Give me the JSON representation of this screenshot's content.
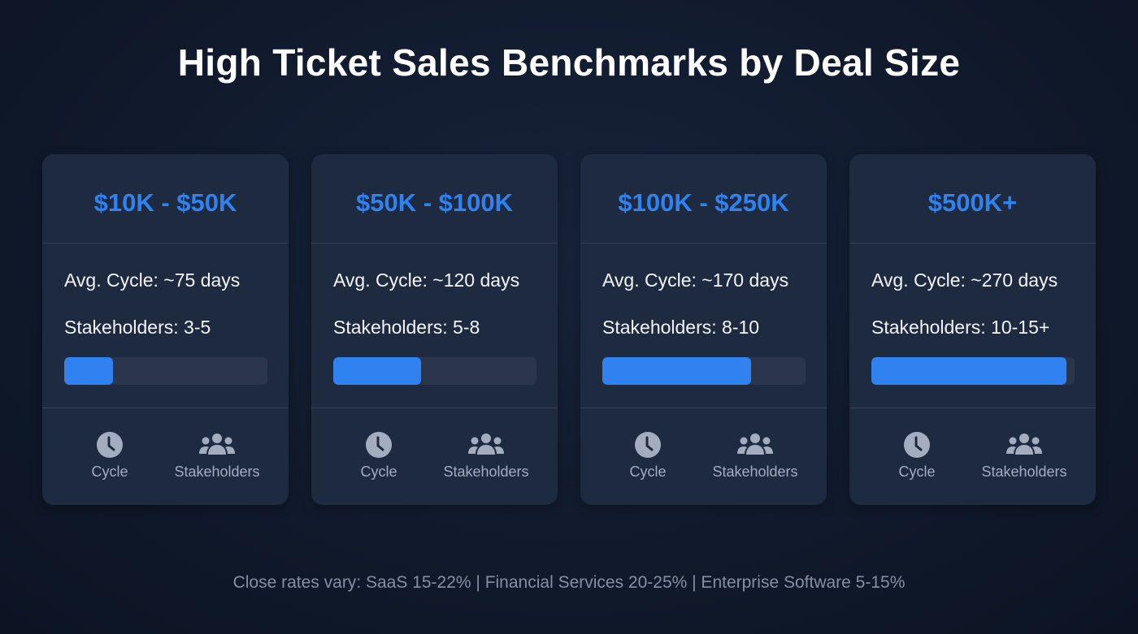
{
  "title": "High Ticket Sales Benchmarks by Deal Size",
  "cards": [
    {
      "range": "$10K - $50K",
      "cycle": "Avg. Cycle: ~75 days",
      "stakeholders": "Stakeholders: 3-5",
      "progress_pct": 24
    },
    {
      "range": "$50K - $100K",
      "cycle": "Avg. Cycle: ~120 days",
      "stakeholders": "Stakeholders: 5-8",
      "progress_pct": 43
    },
    {
      "range": "$100K - $250K",
      "cycle": "Avg. Cycle: ~170 days",
      "stakeholders": "Stakeholders: 8-10",
      "progress_pct": 73
    },
    {
      "range": "$500K+",
      "cycle": "Avg. Cycle: ~270 days",
      "stakeholders": "Stakeholders: 10-15+",
      "progress_pct": 96
    }
  ],
  "icon_labels": {
    "cycle": "Cycle",
    "stakeholders": "Stakeholders"
  },
  "icons": {
    "cycle": "clock-icon",
    "stakeholders": "users-icon"
  },
  "colors": {
    "accent": "#2f82f0",
    "card": "#1e2a40"
  },
  "footer": "Close rates vary: SaaS 15-22% | Financial Services 20-25% | Enterprise Software 5-15%"
}
